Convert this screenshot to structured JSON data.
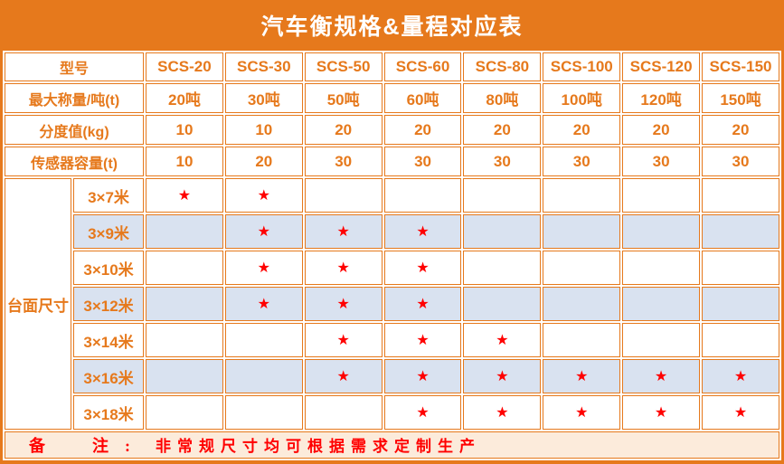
{
  "title": "汽车衡规格&量程对应表",
  "colors": {
    "orange": "#E6791C",
    "row_blue": "#D9E2F0",
    "star_red": "#FF0000",
    "note_bg": "#FCEBDB",
    "note_red": "#FF0000",
    "title_text": "#FFFFFF",
    "cell_bg": "#FFFFFF"
  },
  "table": {
    "model_header": "型号",
    "models": [
      "SCS-20",
      "SCS-30",
      "SCS-50",
      "SCS-60",
      "SCS-80",
      "SCS-100",
      "SCS-120",
      "SCS-150"
    ],
    "spec_rows": [
      {
        "label": "最大称量/吨(t)",
        "values": [
          "20吨",
          "30吨",
          "50吨",
          "60吨",
          "80吨",
          "100吨",
          "120吨",
          "150吨"
        ]
      },
      {
        "label": "分度值(kg)",
        "values": [
          "10",
          "10",
          "20",
          "20",
          "20",
          "20",
          "20",
          "20"
        ]
      },
      {
        "label": "传感器容量(t)",
        "values": [
          "10",
          "20",
          "30",
          "30",
          "30",
          "30",
          "30",
          "30"
        ]
      }
    ],
    "platform_label": "台面尺寸",
    "star_char": "★",
    "platform_rows": [
      {
        "size": "3×7米",
        "shaded": false,
        "stars": [
          1,
          1,
          0,
          0,
          0,
          0,
          0,
          0
        ]
      },
      {
        "size": "3×9米",
        "shaded": true,
        "stars": [
          0,
          1,
          1,
          1,
          0,
          0,
          0,
          0
        ]
      },
      {
        "size": "3×10米",
        "shaded": false,
        "stars": [
          0,
          1,
          1,
          1,
          0,
          0,
          0,
          0
        ]
      },
      {
        "size": "3×12米",
        "shaded": true,
        "stars": [
          0,
          1,
          1,
          1,
          0,
          0,
          0,
          0
        ]
      },
      {
        "size": "3×14米",
        "shaded": false,
        "stars": [
          0,
          0,
          1,
          1,
          1,
          0,
          0,
          0
        ]
      },
      {
        "size": "3×16米",
        "shaded": true,
        "stars": [
          0,
          0,
          1,
          1,
          1,
          1,
          1,
          1
        ]
      },
      {
        "size": "3×18米",
        "shaded": false,
        "stars": [
          0,
          0,
          0,
          1,
          1,
          1,
          1,
          1
        ]
      }
    ]
  },
  "note": {
    "label_1": "备",
    "label_2": "注",
    "colon": ":",
    "text": "非常规尺寸均可根据需求定制生产"
  }
}
